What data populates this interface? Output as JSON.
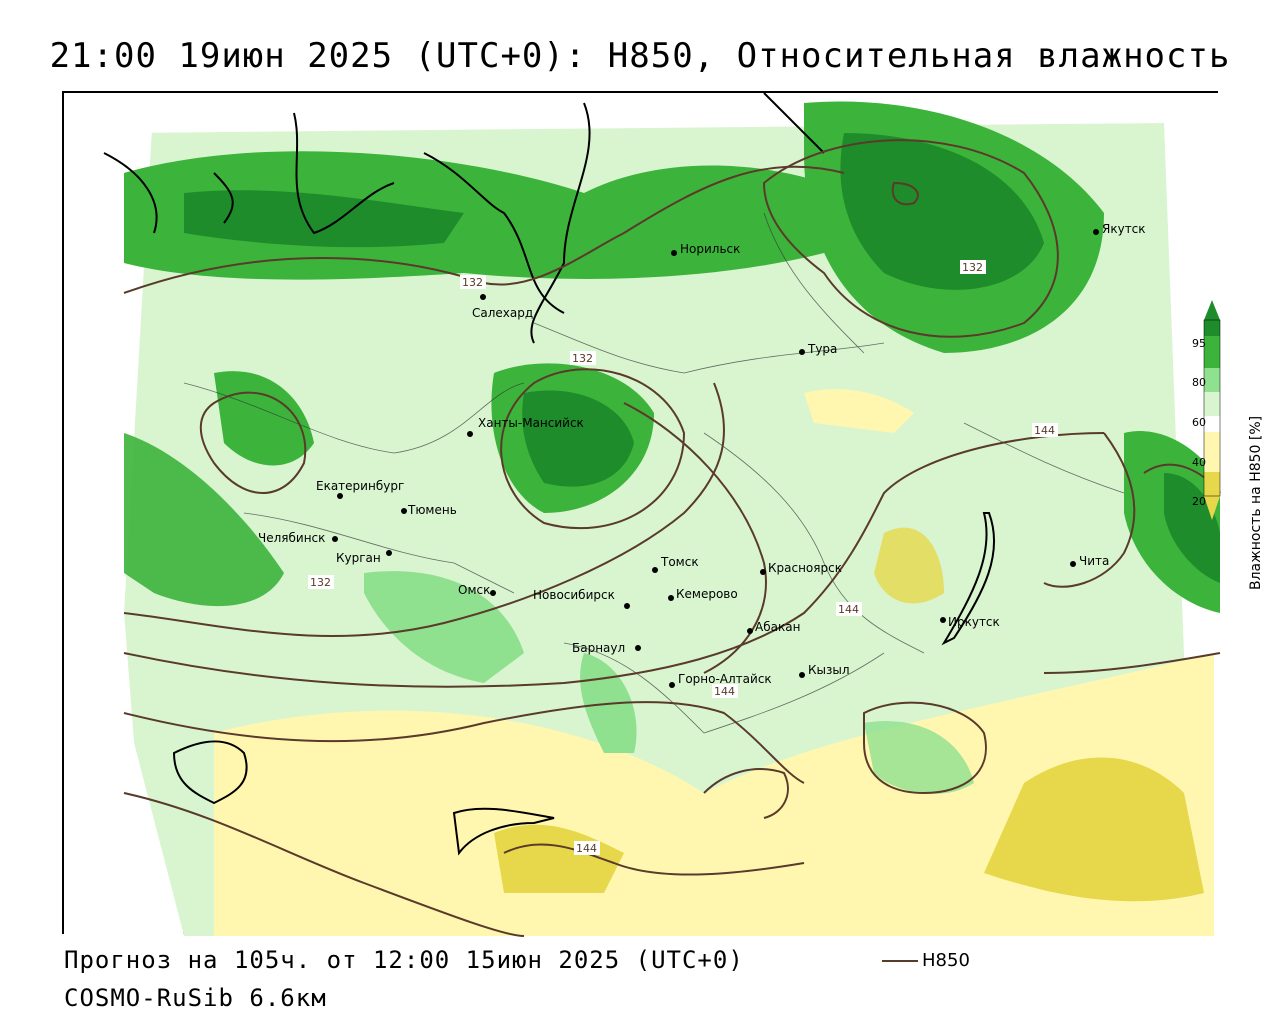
{
  "header": {
    "title": "21:00 19июн 2025 (UTC+0): Н850, Относительная влажность"
  },
  "footer": {
    "forecast": "Прогноз на 105ч. от 12:00 15июн 2025 (UTC+0)",
    "model": "COSMO-RuSib 6.6км",
    "legend_label": "Н850"
  },
  "colorbar": {
    "title": "Влажность на Н850 [%]",
    "ticks": [
      "95",
      "80",
      "60",
      "40",
      "20"
    ],
    "colors": [
      "#1e8c2a",
      "#3cb43c",
      "#8fe08f",
      "#d8f5d0",
      "#ffffff",
      "#fff7b0",
      "#e6d84a"
    ]
  },
  "cities": [
    {
      "name": "Норильск"
    },
    {
      "name": "Якутск"
    },
    {
      "name": "Салехард"
    },
    {
      "name": "Тура"
    },
    {
      "name": "Ханты-Мансийск"
    },
    {
      "name": "Екатеринбург"
    },
    {
      "name": "Тюмень"
    },
    {
      "name": "Челябинск"
    },
    {
      "name": "Курган"
    },
    {
      "name": "Томск"
    },
    {
      "name": "Красноярск"
    },
    {
      "name": "Омск"
    },
    {
      "name": "Новосибирск"
    },
    {
      "name": "Кемерово"
    },
    {
      "name": "Барнаул"
    },
    {
      "name": "Абакан"
    },
    {
      "name": "Иркутск"
    },
    {
      "name": "Чита"
    },
    {
      "name": "Горно-Алтайск"
    },
    {
      "name": "Кызыл"
    }
  ],
  "contour_labels": [
    "132",
    "132",
    "132",
    "144",
    "144",
    "144",
    "144",
    "132"
  ]
}
